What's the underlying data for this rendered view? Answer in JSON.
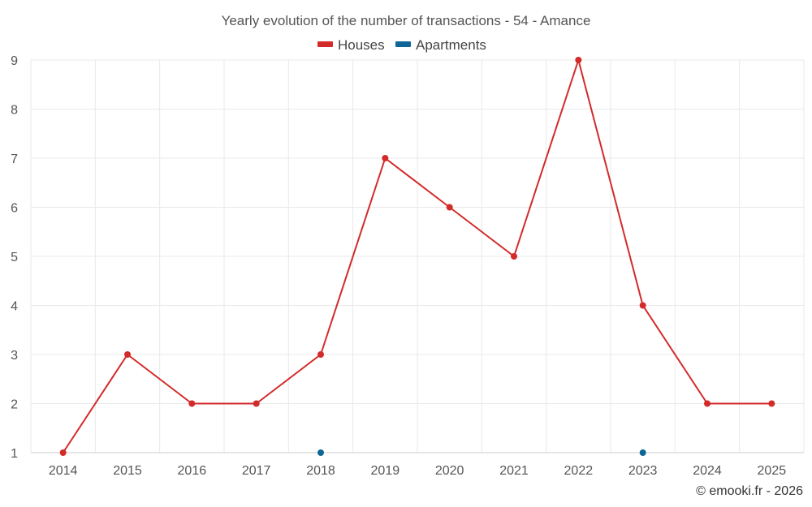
{
  "chart_data": {
    "type": "line",
    "title": "Yearly evolution of the number of transactions - 54 - Amance",
    "xlabel": "",
    "ylabel": "",
    "categories": [
      "2014",
      "2015",
      "2016",
      "2017",
      "2018",
      "2019",
      "2020",
      "2021",
      "2022",
      "2023",
      "2024",
      "2025"
    ],
    "ylim": [
      1,
      9
    ],
    "yticks": [
      1,
      2,
      3,
      4,
      5,
      6,
      7,
      8,
      9
    ],
    "grid": true,
    "legend_position": "top-center",
    "series": [
      {
        "name": "Houses",
        "color": "#d32a2a",
        "values": [
          1,
          3,
          2,
          2,
          3,
          7,
          6,
          5,
          9,
          4,
          2,
          2
        ]
      },
      {
        "name": "Apartments",
        "color": "#0e6696",
        "values": [
          null,
          null,
          null,
          null,
          1,
          null,
          null,
          null,
          null,
          1,
          null,
          null
        ]
      }
    ],
    "credit": "© emooki.fr - 2026"
  }
}
